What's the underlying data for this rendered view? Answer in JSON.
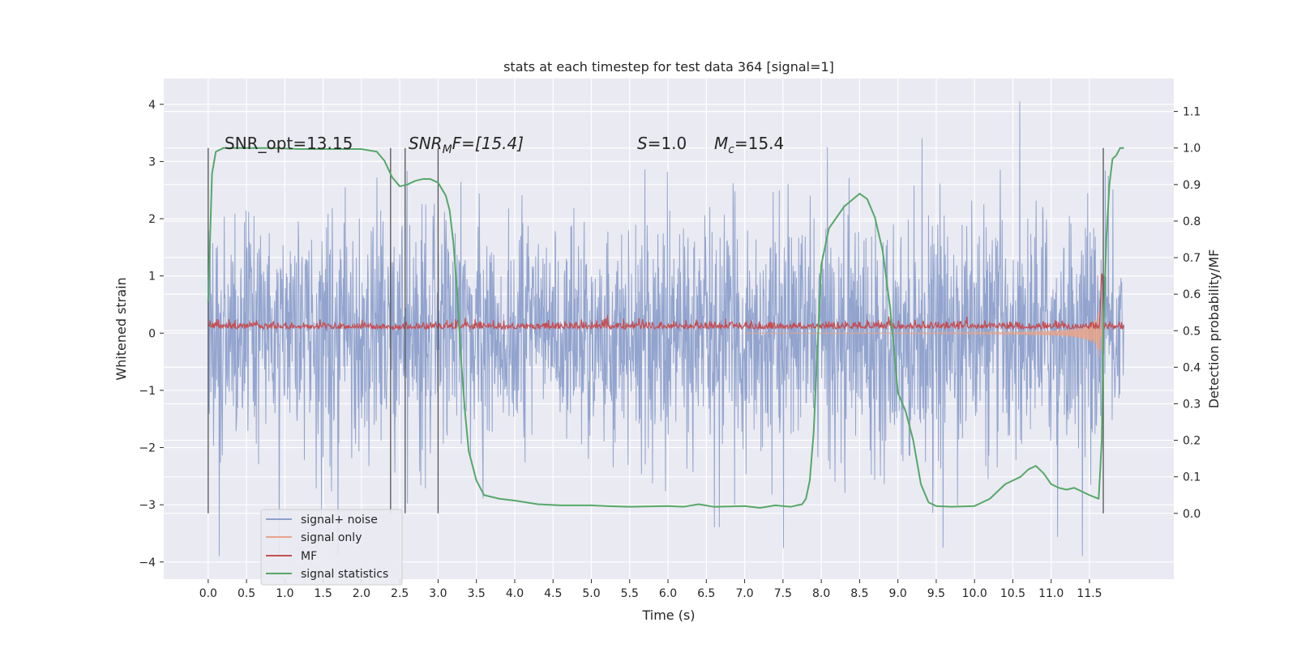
{
  "chart_data": {
    "type": "line",
    "title": "stats at each timestep for test data 364 [signal=1]",
    "xlabel": "Time (s)",
    "ylabel": "Whitened strain",
    "ylabel_right": "Detection probability/MF",
    "xlim": [
      -0.58,
      12.6
    ],
    "ylim": [
      -4.3,
      4.45
    ],
    "ylim_right": [
      -0.18,
      1.19
    ],
    "x_ticks": [
      "0.0",
      "0.5",
      "1.0",
      "1.5",
      "2.0",
      "2.5",
      "3.0",
      "3.5",
      "4.0",
      "4.5",
      "5.0",
      "5.5",
      "6.0",
      "6.5",
      "7.0",
      "7.5",
      "8.0",
      "8.5",
      "9.0",
      "9.5",
      "10.0",
      "10.5",
      "11.0",
      "11.5"
    ],
    "y_ticks": [
      "4",
      "3",
      "2",
      "1",
      "0",
      "−1",
      "−2",
      "−3",
      "−4"
    ],
    "y_ticks_right": [
      "1.1",
      "1.0",
      "0.9",
      "0.8",
      "0.7",
      "0.6",
      "0.5",
      "0.4",
      "0.3",
      "0.2",
      "0.1",
      "0.0"
    ],
    "annotations": {
      "snr_opt": "SNR_opt=13.15",
      "snr_mf_a": "SNR",
      "snr_mf_sub": "M",
      "snr_mf_b": "F=[15.4]",
      "s_a": "S",
      "s_b": "=1.0",
      "mc_a": "M",
      "mc_sub": "c",
      "mc_b": "=15.4"
    },
    "legend": {
      "placement": "lower-left",
      "entries": [
        "signal+ noise",
        "signal only",
        "MF",
        "signal statistics"
      ]
    },
    "grid": true,
    "colors": {
      "noise": "#8da0cb",
      "signal": "#e8a58a",
      "mf": "#c44e52",
      "stat": "#55a868",
      "background": "#eaeaf2",
      "grid": "#ffffff",
      "vline": "#555555"
    },
    "vertical_lines": [
      0.0,
      2.38,
      2.57,
      3.0,
      11.68
    ],
    "series": [
      {
        "name": "signal statistics",
        "axis": "right",
        "x": [
          0.0,
          0.05,
          0.1,
          0.2,
          0.4,
          0.8,
          1.2,
          1.6,
          2.0,
          2.2,
          2.3,
          2.4,
          2.5,
          2.6,
          2.7,
          2.8,
          2.9,
          3.0,
          3.1,
          3.15,
          3.2,
          3.25,
          3.3,
          3.35,
          3.4,
          3.5,
          3.6,
          3.8,
          4.0,
          4.3,
          4.6,
          5.0,
          5.2,
          5.5,
          6.0,
          6.2,
          6.4,
          6.6,
          7.0,
          7.2,
          7.4,
          7.6,
          7.75,
          7.8,
          7.85,
          7.9,
          7.95,
          8.0,
          8.1,
          8.3,
          8.5,
          8.6,
          8.7,
          8.8,
          8.9,
          9.0,
          9.1,
          9.2,
          9.3,
          9.4,
          9.5,
          9.7,
          10.0,
          10.2,
          10.4,
          10.6,
          10.7,
          10.8,
          10.9,
          11.0,
          11.1,
          11.2,
          11.3,
          11.5,
          11.62,
          11.66,
          11.68,
          11.72,
          11.76,
          11.8,
          11.85,
          11.9,
          11.95
        ],
        "values": [
          0.58,
          0.93,
          0.99,
          1.0,
          1.0,
          1.0,
          0.997,
          0.997,
          0.997,
          0.99,
          0.965,
          0.92,
          0.895,
          0.9,
          0.91,
          0.915,
          0.915,
          0.905,
          0.87,
          0.83,
          0.74,
          0.6,
          0.42,
          0.28,
          0.17,
          0.09,
          0.05,
          0.04,
          0.035,
          0.025,
          0.022,
          0.022,
          0.02,
          0.018,
          0.02,
          0.018,
          0.025,
          0.018,
          0.02,
          0.015,
          0.022,
          0.018,
          0.025,
          0.04,
          0.09,
          0.22,
          0.45,
          0.68,
          0.78,
          0.84,
          0.875,
          0.86,
          0.81,
          0.72,
          0.56,
          0.33,
          0.28,
          0.2,
          0.08,
          0.03,
          0.02,
          0.018,
          0.02,
          0.04,
          0.08,
          0.1,
          0.12,
          0.13,
          0.11,
          0.08,
          0.07,
          0.065,
          0.07,
          0.05,
          0.04,
          0.2,
          0.5,
          0.75,
          0.9,
          0.97,
          0.98,
          1.0,
          1.0
        ]
      }
    ]
  }
}
